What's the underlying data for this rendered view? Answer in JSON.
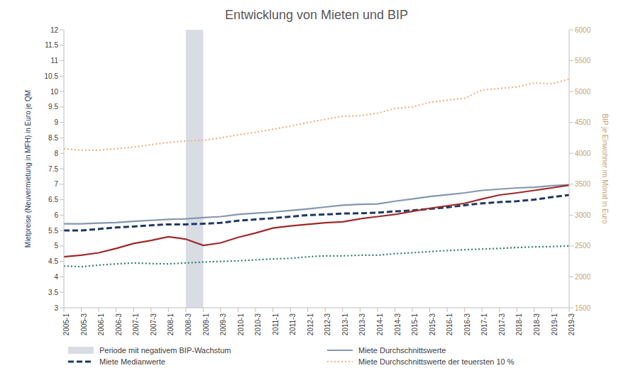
{
  "chart_data": {
    "type": "line",
    "title": "Entwicklung von Mieten und BIP",
    "categories": [
      "2005-1",
      "2005-3",
      "2006-1",
      "2006-3",
      "2007-1",
      "2007-3",
      "2008-1",
      "2008-3",
      "2009-1",
      "2009-3",
      "2010-1",
      "2010-3",
      "2011-1",
      "2011-3",
      "2012-1",
      "2012-3",
      "2013-1",
      "2013-3",
      "2014-1",
      "2014-3",
      "2015-1",
      "2015-3",
      "2016-1",
      "2016-3",
      "2017-1",
      "2017-3",
      "2018-1",
      "2018-3",
      "2019-1",
      "2019-3"
    ],
    "y_label": "Mietpreise (Neuvermietung in MFH) in Euro je QM",
    "y2_label": "BIP je Einwohner im Monat in Euro",
    "ylim": [
      3,
      12
    ],
    "yticks": [
      3,
      3.5,
      4,
      4.5,
      5,
      5.5,
      6,
      6.5,
      7,
      7.5,
      8,
      8.5,
      9,
      9.5,
      10,
      10.5,
      11,
      11.5,
      12
    ],
    "y2lim": [
      1500,
      6000
    ],
    "y2ticks": [
      1500,
      2000,
      2500,
      3000,
      3500,
      4000,
      4500,
      5000,
      5500,
      6000
    ],
    "grid": false,
    "legend": "bottom",
    "shaded_periods": [
      {
        "from": "2008-3",
        "to": "2009-1",
        "label": "Periode mit negativem BIP-Wachstum",
        "color": "#d9dde3"
      }
    ],
    "series": [
      {
        "name": "Miete Durchschnittswerte",
        "color": "#8497b0",
        "line_style": "solid",
        "values": [
          5.72,
          5.72,
          5.74,
          5.76,
          5.8,
          5.83,
          5.86,
          5.88,
          5.92,
          5.95,
          6.02,
          6.06,
          6.1,
          6.15,
          6.2,
          6.26,
          6.32,
          6.35,
          6.36,
          6.45,
          6.52,
          6.6,
          6.66,
          6.72,
          6.8,
          6.84,
          6.88,
          6.9,
          6.95,
          6.98
        ]
      },
      {
        "name": "Miete Medianwerte",
        "color": "#1f3864",
        "line_style": "dashed",
        "values": [
          5.5,
          5.5,
          5.55,
          5.6,
          5.63,
          5.67,
          5.7,
          5.7,
          5.72,
          5.75,
          5.82,
          5.86,
          5.9,
          5.95,
          6.0,
          6.02,
          6.05,
          6.06,
          6.08,
          6.12,
          6.15,
          6.2,
          6.25,
          6.32,
          6.38,
          6.42,
          6.45,
          6.5,
          6.58,
          6.65
        ]
      },
      {
        "name": "Miete Durchschnittswerte der teuersten 10 %",
        "color": "#f4b183",
        "line_style": "dotted",
        "values": [
          8.15,
          8.1,
          8.1,
          8.15,
          8.2,
          8.28,
          8.35,
          8.4,
          8.42,
          8.5,
          8.6,
          8.68,
          8.78,
          8.88,
          9.0,
          9.1,
          9.2,
          9.22,
          9.3,
          9.45,
          9.5,
          9.65,
          9.72,
          9.78,
          10.05,
          10.1,
          10.15,
          10.28,
          10.25,
          10.4
        ]
      },
      {
        "color": "#2e7d6e",
        "line_style": "dotted",
        "values": [
          4.35,
          4.33,
          4.38,
          4.42,
          4.45,
          4.43,
          4.42,
          4.45,
          4.48,
          4.5,
          4.52,
          4.55,
          4.58,
          4.6,
          4.65,
          4.68,
          4.68,
          4.7,
          4.7,
          4.75,
          4.78,
          4.82,
          4.85,
          4.88,
          4.9,
          4.92,
          4.95,
          4.97,
          4.98,
          5.0
        ]
      },
      {
        "color": "#9e2a2b",
        "line_style": "solid",
        "axis": "y2",
        "values": [
          2325,
          2350,
          2390,
          2460,
          2540,
          2590,
          2650,
          2610,
          2510,
          2550,
          2640,
          2710,
          2790,
          2825,
          2850,
          2875,
          2890,
          2940,
          2975,
          3010,
          3060,
          3110,
          3150,
          3190,
          3260,
          3325,
          3360,
          3400,
          3440,
          3485
        ]
      }
    ]
  }
}
